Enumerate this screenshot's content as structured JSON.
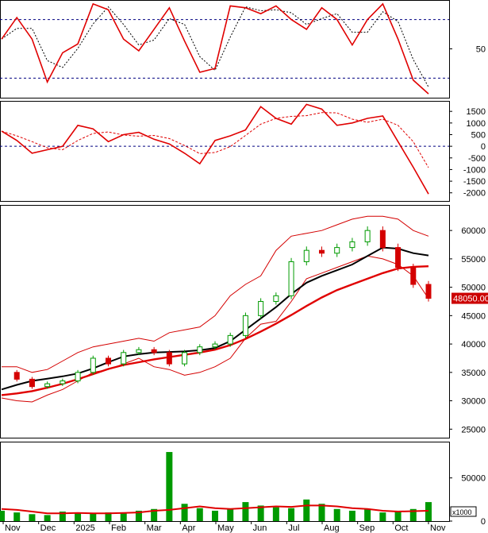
{
  "chart_data": [
    {
      "type": "line",
      "panel": "stochastic",
      "yticks": [
        50
      ],
      "ylim": [
        0,
        100
      ],
      "reference_levels": [
        20,
        80
      ],
      "grid": false,
      "colors": {
        "main": "#e00000",
        "signal": "#000000",
        "reference": "#000080"
      },
      "series": [
        {
          "values": [
            60,
            82,
            60,
            16,
            46,
            55,
            96,
            90,
            60,
            48,
            70,
            92,
            58,
            26,
            30,
            94,
            92,
            86,
            94,
            80,
            70,
            92,
            80,
            54,
            80,
            96,
            60,
            18,
            4
          ]
        }
      ]
    },
    {
      "type": "line",
      "panel": "macd",
      "yticks": [
        1500,
        1000,
        500,
        0,
        -500,
        -1000,
        -1500,
        -2000
      ],
      "ylim": [
        -2350,
        1950
      ],
      "zero_line": true,
      "colors": {
        "main": "#e00000",
        "signal": "#e00000",
        "reference": "#000080"
      },
      "series": [
        {
          "values": [
            650,
            250,
            -300,
            -150,
            0,
            900,
            750,
            200,
            500,
            600,
            300,
            100,
            -300,
            -750,
            250,
            450,
            700,
            1700,
            1200,
            950,
            1800,
            1600,
            900,
            1000,
            1200,
            1300,
            200,
            -900,
            -2050
          ]
        }
      ]
    },
    {
      "type": "candlestick",
      "panel": "price",
      "yticks": [
        60000,
        55000,
        50000,
        45000,
        40000,
        35000,
        30000,
        25000
      ],
      "ylim": [
        23500,
        64500
      ],
      "last_price_label": "48050.00",
      "colors": {
        "up": "#009a00",
        "down": "#d40000",
        "ma_fast": "#000000",
        "ma_slow": "#e00000",
        "band": "#d40000",
        "last_price_bg": "#cc0000"
      },
      "closes": [
        35000,
        33800,
        32500,
        33000,
        33500,
        35000,
        37500,
        36500,
        38500,
        39000,
        38500,
        36500,
        38500,
        39500,
        40000,
        41500,
        45000,
        47500,
        48500,
        54500,
        56500,
        56000,
        57000,
        58000,
        60000,
        57000,
        53500,
        50500,
        48050
      ],
      "ma_fast": [
        32000,
        32800,
        33500,
        33900,
        34300,
        34800,
        35700,
        36800,
        37800,
        38200,
        38500,
        38600,
        38700,
        38900,
        39300,
        40500,
        42500,
        44500,
        46500,
        48800,
        50800,
        52000,
        53000,
        54000,
        55500,
        57000,
        56800,
        56000,
        55600
      ],
      "ma_slow": [
        31000,
        31300,
        31700,
        32300,
        33000,
        33800,
        34700,
        35600,
        36300,
        36800,
        37300,
        37700,
        38100,
        38500,
        39000,
        39800,
        40900,
        42200,
        43600,
        45100,
        46700,
        48200,
        49500,
        50500,
        51500,
        52500,
        53300,
        53600,
        53700
      ],
      "band_upper": [
        36000,
        36000,
        35000,
        35500,
        37000,
        38500,
        39500,
        40000,
        40500,
        41000,
        40500,
        42000,
        42500,
        43000,
        45000,
        48500,
        50500,
        52000,
        56500,
        59000,
        59500,
        60000,
        61000,
        62000,
        62500,
        62500,
        62000,
        60000,
        59000
      ],
      "band_lower": [
        30500,
        30000,
        29800,
        31000,
        32000,
        33500,
        35000,
        35500,
        36500,
        37500,
        36000,
        35500,
        34500,
        35000,
        36000,
        37500,
        41000,
        43500,
        44000,
        47500,
        51500,
        52500,
        53500,
        54500,
        55500,
        55000,
        54000,
        52000,
        48000
      ]
    },
    {
      "type": "bar",
      "panel": "volume",
      "yticks": [
        50000,
        0
      ],
      "ylim": [
        0,
        92000
      ],
      "unit_label": "x1000",
      "colors": {
        "bars": "#009a00",
        "avg": "#e00000"
      },
      "values": [
        12000,
        10000,
        8000,
        7000,
        11000,
        10000,
        9000,
        10000,
        9000,
        12000,
        14000,
        80000,
        20000,
        15000,
        12000,
        14000,
        22000,
        18000,
        16000,
        15000,
        25000,
        20000,
        14000,
        12000,
        14000,
        10000,
        12000,
        14000,
        22000
      ],
      "avg": [
        14000,
        13000,
        11000,
        9000,
        9000,
        9500,
        9000,
        9000,
        9500,
        10000,
        12000,
        13000,
        15000,
        17000,
        15000,
        14000,
        15000,
        16000,
        17000,
        16500,
        18000,
        18000,
        17000,
        15000,
        14000,
        12000,
        11000,
        11500,
        12000
      ]
    }
  ],
  "x_axis": {
    "months": [
      "Nov",
      "Dec",
      "2025",
      "Feb",
      "Mar",
      "Apr",
      "May",
      "Jun",
      "Jul",
      "Aug",
      "Sep",
      "Oct",
      "Nov"
    ]
  }
}
